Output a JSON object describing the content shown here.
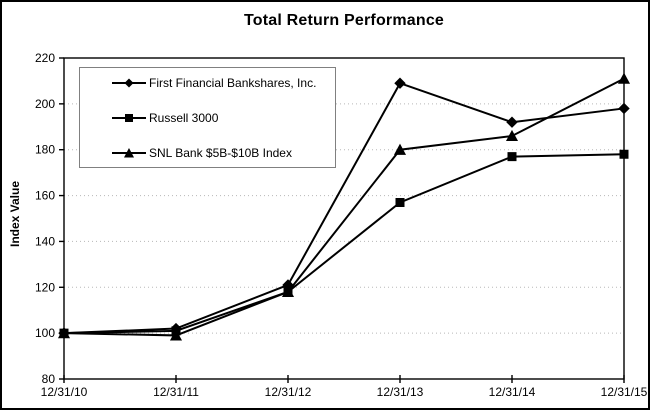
{
  "chart_data": {
    "type": "line",
    "title": "Total Return Performance",
    "xlabel": "",
    "ylabel": "Index Value",
    "categories": [
      "12/31/10",
      "12/31/11",
      "12/31/12",
      "12/31/13",
      "12/31/14",
      "12/31/15"
    ],
    "series": [
      {
        "name": "First Financial Bankshares, Inc.",
        "marker": "diamond",
        "values": [
          100,
          102,
          121,
          209,
          192,
          198
        ]
      },
      {
        "name": "Russell 3000",
        "marker": "square",
        "values": [
          100,
          101,
          118,
          157,
          177,
          178
        ]
      },
      {
        "name": "SNL Bank $5B-$10B Index",
        "marker": "triangle",
        "values": [
          100,
          99,
          118,
          180,
          186,
          211
        ]
      }
    ],
    "ylim": [
      80,
      220
    ],
    "y_ticks": [
      80,
      100,
      120,
      140,
      160,
      180,
      200,
      220
    ],
    "grid": "horizontal-dotted",
    "legend_position": "top-left-inside",
    "colors": {
      "line": "#000000",
      "marker": "#000000",
      "grid": "#b8b8b8",
      "frame": "#000000",
      "legend_border": "#808080",
      "background": "#ffffff",
      "text": "#000000"
    }
  }
}
